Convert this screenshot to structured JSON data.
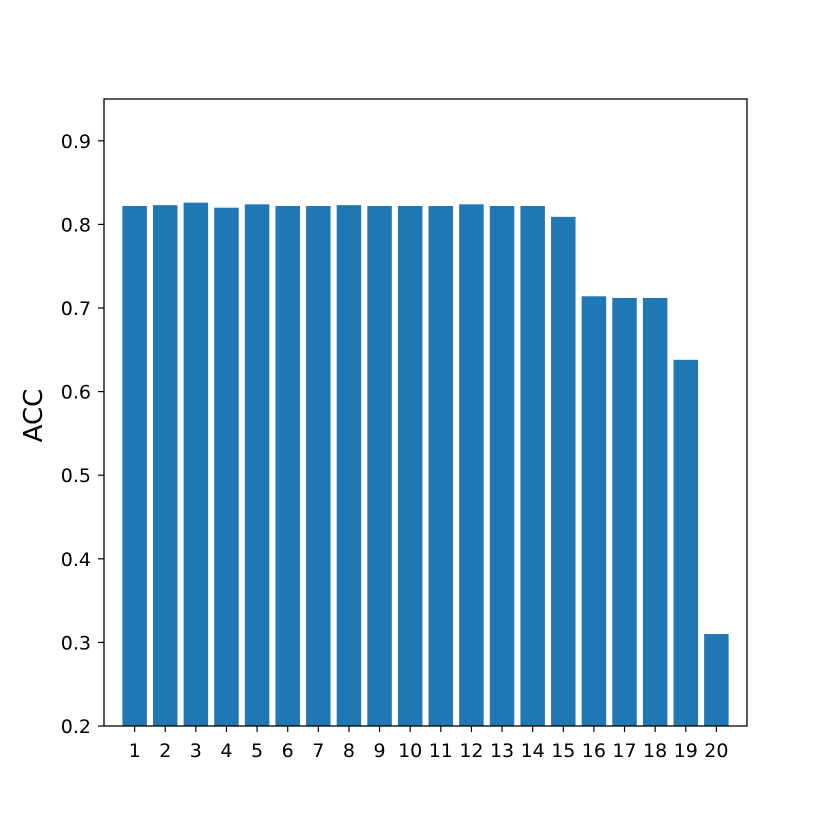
{
  "chart_data": {
    "type": "bar",
    "categories": [
      "1",
      "2",
      "3",
      "4",
      "5",
      "6",
      "7",
      "8",
      "9",
      "10",
      "11",
      "12",
      "13",
      "14",
      "15",
      "16",
      "17",
      "18",
      "19",
      "20"
    ],
    "values": [
      0.822,
      0.823,
      0.826,
      0.82,
      0.824,
      0.822,
      0.822,
      0.823,
      0.822,
      0.822,
      0.822,
      0.824,
      0.822,
      0.822,
      0.809,
      0.714,
      0.712,
      0.712,
      0.638,
      0.31
    ],
    "title": "",
    "xlabel": "",
    "ylabel": "ACC",
    "ylim": [
      0.2,
      0.95
    ],
    "yticks": [
      "0.2",
      "0.3",
      "0.4",
      "0.5",
      "0.6",
      "0.7",
      "0.8",
      "0.9"
    ],
    "bar_color": "#1f77b4",
    "grid": false
  }
}
